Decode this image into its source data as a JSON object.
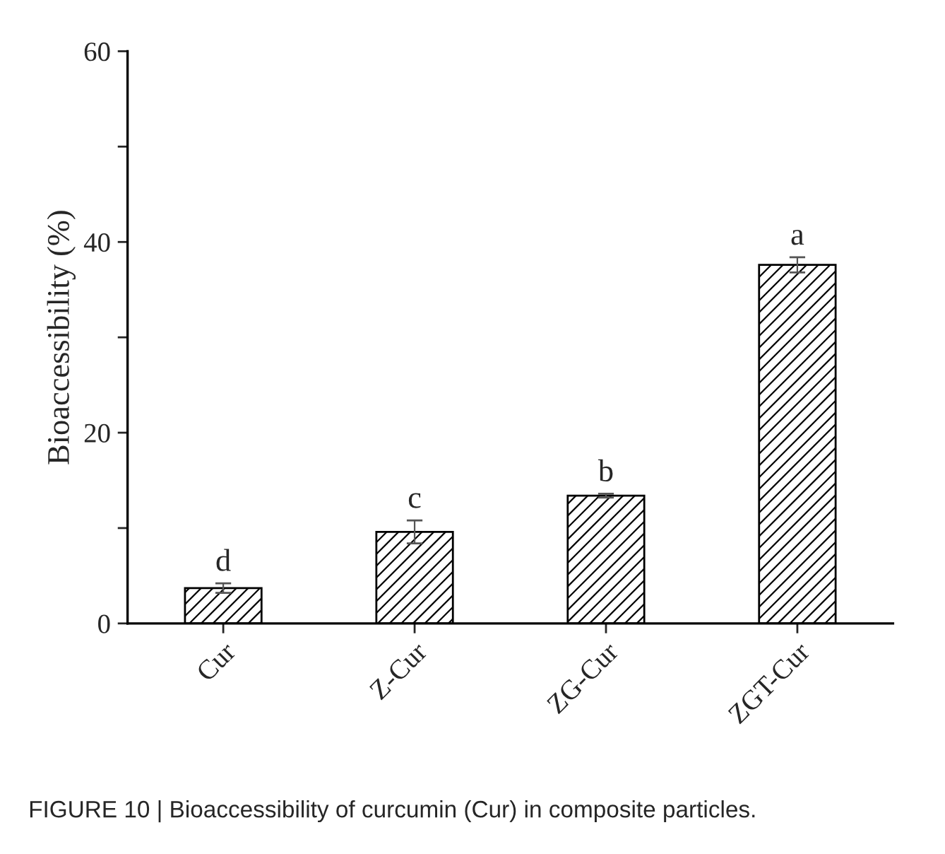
{
  "chart_data": {
    "type": "bar",
    "ylabel": "Bioaccessibility (%)",
    "categories": [
      "Cur",
      "Z-Cur",
      "ZG-Cur",
      "ZGT-Cur"
    ],
    "values": [
      3.7,
      9.6,
      13.4,
      37.6
    ],
    "errors": [
      0.5,
      1.2,
      0.2,
      0.8
    ],
    "ylim": [
      0,
      60
    ],
    "yticks": [
      0,
      {
        "value": 10,
        "label": null
      },
      20,
      {
        "value": 30,
        "label": null
      },
      40,
      {
        "value": 50,
        "label": null
      },
      60
    ],
    "annotations": [
      {
        "text": "d",
        "x": "Cur",
        "y": 4.2
      },
      {
        "text": "c",
        "x": "Z-Cur",
        "y": 10.8
      },
      {
        "text": "b",
        "x": "ZG-Cur",
        "y": 13.6
      },
      {
        "text": "a",
        "x": "ZGT-Cur",
        "y": 38.4
      },
      "FIGURE 10 | Bioaccessibility of curcumin (Cur) in composite particles."
    ],
    "grid": false,
    "legend": false
  }
}
